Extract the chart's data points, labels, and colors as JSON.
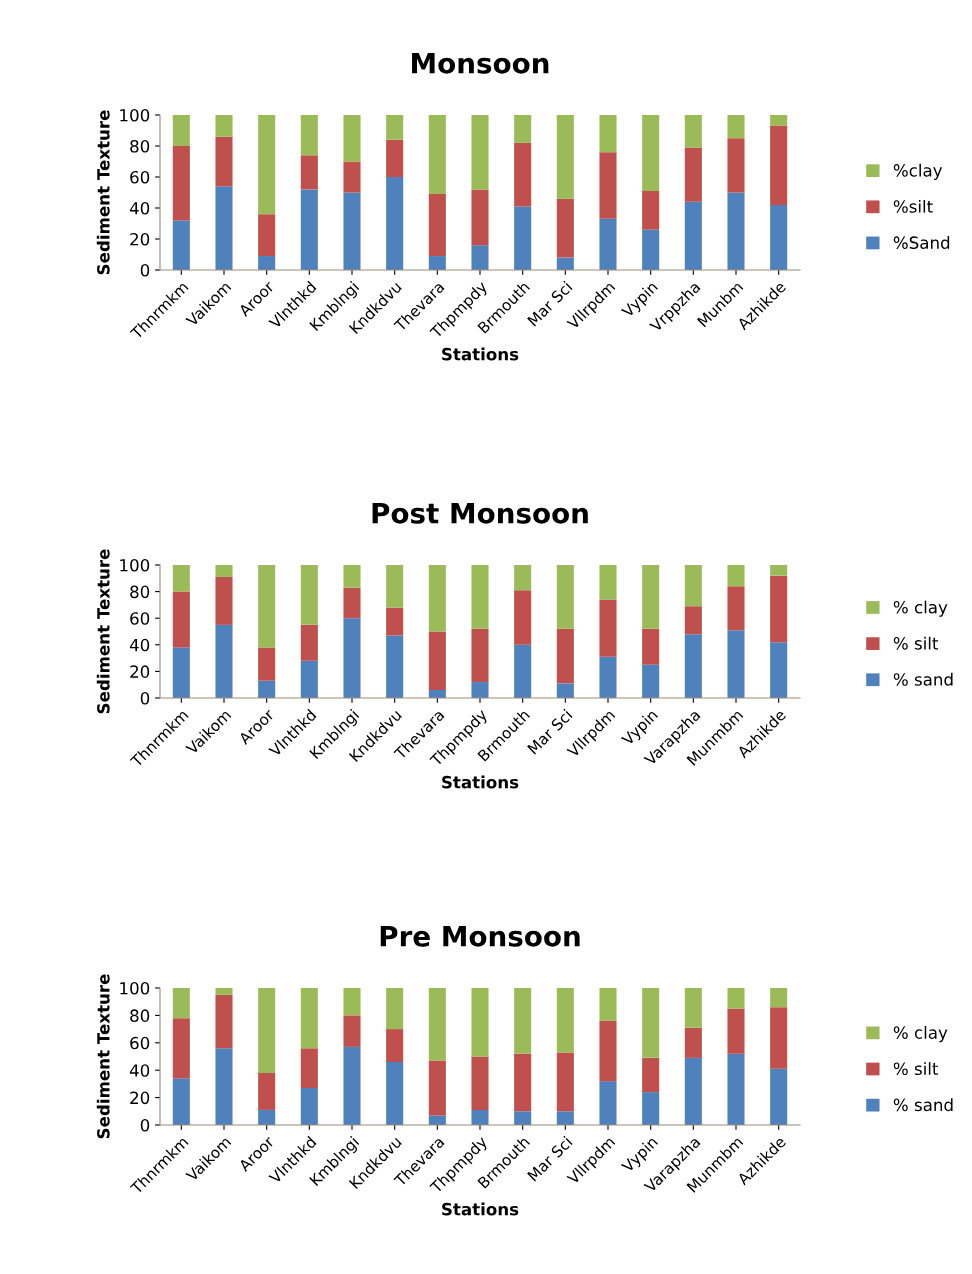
{
  "chart_data": [
    {
      "type": "bar",
      "stacked": true,
      "title": "Monsoon",
      "xlabel": "Stations",
      "ylabel": "Sediment Texture",
      "legend": "right",
      "ylim": [
        0,
        100
      ],
      "yticks": [
        0,
        20,
        40,
        60,
        80,
        100
      ],
      "grid": false,
      "categories": [
        "Thnrmkm",
        "Vaikom",
        "Aroor",
        "Vlnthkd",
        "Kmblngi",
        "Kndkdvu",
        "Thevara",
        "Thpmpdy",
        "Brmouth",
        "Mar Sci",
        "Vllrpdm",
        "Vypin",
        "Vrppzha",
        "Munbm",
        "Azhikde"
      ],
      "series": [
        {
          "name": "%Sand",
          "color": "#4f81bd",
          "values": [
            32,
            54,
            9,
            52,
            50,
            60,
            9,
            16,
            41,
            8,
            33,
            26,
            44,
            50,
            42
          ]
        },
        {
          "name": "%silt",
          "color": "#c0504d",
          "values": [
            48,
            32,
            27,
            22,
            20,
            24,
            40,
            36,
            41,
            38,
            43,
            25,
            35,
            35,
            51
          ]
        },
        {
          "name": "%clay",
          "color": "#9bbb59",
          "values": [
            20,
            14,
            64,
            26,
            30,
            16,
            51,
            48,
            18,
            54,
            24,
            49,
            21,
            15,
            7
          ]
        }
      ]
    },
    {
      "type": "bar",
      "stacked": true,
      "title": "Post Monsoon",
      "xlabel": "Stations",
      "ylabel": "Sediment Texture",
      "legend": "right",
      "ylim": [
        0,
        100
      ],
      "yticks": [
        0,
        20,
        40,
        60,
        80,
        100
      ],
      "grid": false,
      "categories": [
        "Thnrmkm",
        "Vaikom",
        "Aroor",
        "Vlnthkd",
        "Kmblngi",
        "Kndkdvu",
        "Thevara",
        "Thpmpdy",
        "Brmouth",
        "Mar Sci",
        "Vllrpdm",
        "Vypin",
        "Varapzha",
        "Munmbm",
        "Azhikde"
      ],
      "series": [
        {
          "name": "% sand",
          "color": "#4f81bd",
          "values": [
            38,
            55,
            13,
            28,
            60,
            47,
            6,
            12,
            40,
            11,
            31,
            25,
            48,
            51,
            42
          ]
        },
        {
          "name": "% silt",
          "color": "#c0504d",
          "values": [
            42,
            36,
            25,
            27,
            23,
            21,
            44,
            40,
            41,
            41,
            43,
            27,
            21,
            33,
            50
          ]
        },
        {
          "name": "% clay",
          "color": "#9bbb59",
          "values": [
            20,
            9,
            62,
            45,
            17,
            32,
            50,
            48,
            19,
            48,
            26,
            48,
            31,
            16,
            8
          ]
        }
      ]
    },
    {
      "type": "bar",
      "stacked": true,
      "title": "Pre Monsoon",
      "xlabel": "Stations",
      "ylabel": "Sediment Texture",
      "legend": "right",
      "ylim": [
        0,
        100
      ],
      "yticks": [
        0,
        20,
        40,
        60,
        80,
        100
      ],
      "grid": false,
      "categories": [
        "Thnrmkm",
        "Vaikom",
        "Aroor",
        "Vlnthkd",
        "Kmblngi",
        "Kndkdvu",
        "Thevara",
        "Thpmpdy",
        "Brmouth",
        "Mar Sci",
        "Vllrpdm",
        "Vypin",
        "Varapzha",
        "Munmbm",
        "Azhikde"
      ],
      "series": [
        {
          "name": "% sand",
          "color": "#4f81bd",
          "values": [
            34,
            56,
            11,
            27,
            57,
            46,
            7,
            11,
            10,
            10,
            32,
            24,
            49,
            52,
            41
          ]
        },
        {
          "name": "% silt",
          "color": "#c0504d",
          "values": [
            44,
            39,
            27,
            29,
            23,
            24,
            40,
            39,
            42,
            43,
            44,
            25,
            22,
            33,
            45
          ]
        },
        {
          "name": "% clay",
          "color": "#9bbb59",
          "values": [
            22,
            5,
            62,
            44,
            20,
            30,
            53,
            50,
            48,
            47,
            24,
            51,
            29,
            15,
            14
          ]
        }
      ]
    }
  ]
}
